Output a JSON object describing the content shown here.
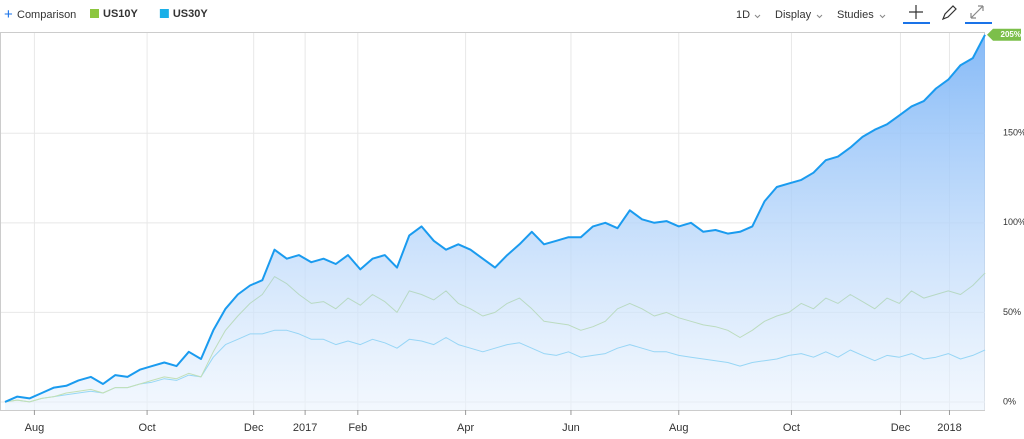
{
  "toolbar": {
    "comparison": "Comparison",
    "interval": "1D",
    "display": "Display",
    "studies": "Studies"
  },
  "chart_data": {
    "type": "line",
    "series": [
      {
        "color": "#1a9bef",
        "area": true,
        "values": [
          0,
          3,
          2,
          5,
          8,
          9,
          12,
          14,
          10,
          15,
          14,
          18,
          20,
          22,
          20,
          28,
          24,
          40,
          52,
          60,
          65,
          68,
          85,
          80,
          82,
          78,
          80,
          77,
          82,
          74,
          80,
          82,
          75,
          93,
          98,
          90,
          85,
          88,
          85,
          80,
          75,
          82,
          88,
          95,
          88,
          90,
          92,
          92,
          98,
          100,
          97,
          107,
          102,
          100,
          101,
          98,
          100,
          95,
          96,
          94,
          95,
          98,
          112,
          120,
          122,
          124,
          128,
          135,
          137,
          142,
          148,
          152,
          155,
          160,
          165,
          168,
          175,
          180,
          188,
          192,
          205
        ],
        "value_labels": [
          null,
          null,
          null,
          null,
          null,
          null,
          null,
          null,
          null,
          null,
          null,
          null,
          null,
          null,
          null,
          null,
          null,
          null,
          null,
          null,
          null,
          null,
          null,
          null,
          null,
          null,
          null,
          null,
          null,
          null,
          null,
          null,
          null,
          null,
          null,
          null,
          null,
          null,
          null,
          null,
          null,
          null,
          null,
          null,
          null,
          null,
          null,
          null,
          null,
          null,
          null,
          null,
          null,
          null,
          null,
          null,
          null,
          null,
          null,
          null,
          null,
          null,
          null,
          null,
          null,
          null,
          null,
          null,
          null,
          null,
          null,
          null,
          null,
          null,
          null,
          null,
          null,
          null,
          null,
          null,
          "205%"
        ]
      },
      {
        "name": "US10Y",
        "color": "#8cc63f",
        "values": [
          0,
          1,
          0,
          2,
          3,
          5,
          6,
          7,
          5,
          8,
          8,
          10,
          12,
          14,
          13,
          16,
          14,
          28,
          40,
          48,
          55,
          60,
          70,
          66,
          60,
          55,
          56,
          52,
          58,
          54,
          60,
          56,
          50,
          62,
          60,
          57,
          62,
          55,
          52,
          48,
          50,
          55,
          58,
          52,
          45,
          44,
          43,
          40,
          42,
          45,
          52,
          55,
          52,
          48,
          50,
          47,
          45,
          43,
          42,
          40,
          36,
          40,
          45,
          48,
          50,
          55,
          52,
          58,
          55,
          60,
          56,
          52,
          58,
          55,
          62,
          58,
          60,
          62,
          60,
          65,
          72
        ]
      },
      {
        "name": "US30Y",
        "color": "#1ab0e8",
        "values": [
          0,
          1,
          0,
          2,
          3,
          4,
          5,
          6,
          5,
          8,
          8,
          10,
          11,
          13,
          12,
          15,
          14,
          25,
          32,
          35,
          38,
          38,
          40,
          40,
          38,
          35,
          35,
          32,
          34,
          32,
          35,
          33,
          30,
          35,
          34,
          32,
          36,
          32,
          30,
          28,
          30,
          32,
          33,
          30,
          27,
          26,
          28,
          25,
          26,
          27,
          30,
          32,
          30,
          28,
          28,
          26,
          25,
          24,
          23,
          22,
          20,
          22,
          23,
          24,
          26,
          27,
          25,
          28,
          25,
          29,
          26,
          23,
          26,
          25,
          27,
          24,
          25,
          27,
          24,
          26,
          29
        ]
      }
    ],
    "xlim": [
      0,
      80
    ],
    "xticks": [
      {
        "value": 2.4,
        "label": "Aug"
      },
      {
        "value": 11.6,
        "label": "Oct"
      },
      {
        "value": 20.3,
        "label": "Dec"
      },
      {
        "value": 24.5,
        "label": "2017"
      },
      {
        "value": 28.8,
        "label": "Feb"
      },
      {
        "value": 37.6,
        "label": "Apr"
      },
      {
        "value": 46.2,
        "label": "Jun"
      },
      {
        "value": 55.0,
        "label": "Aug"
      },
      {
        "value": 64.2,
        "label": "Oct"
      },
      {
        "value": 73.1,
        "label": "Dec"
      },
      {
        "value": 77.1,
        "label": "2018"
      }
    ],
    "ylim": [
      -4.5,
      206
    ],
    "yticks": [
      {
        "value": 0,
        "label": "0%"
      },
      {
        "value": 50,
        "label": "50%"
      },
      {
        "value": 100,
        "label": "100%"
      },
      {
        "value": 150,
        "label": "150%"
      }
    ],
    "grid": true
  }
}
